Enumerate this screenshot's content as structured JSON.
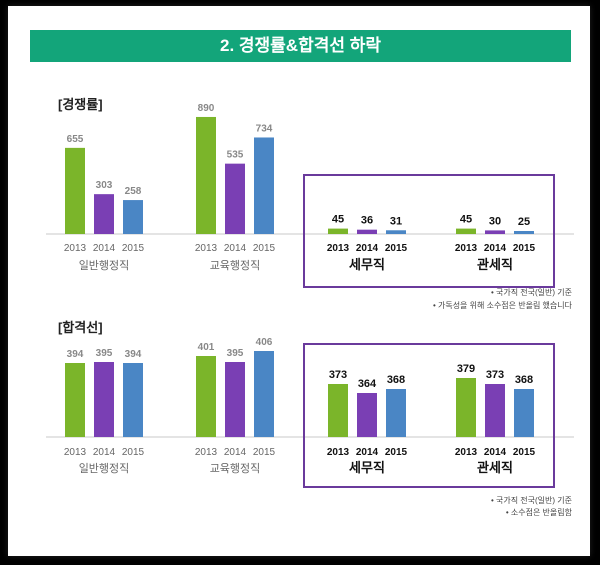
{
  "title": "2. 경쟁률&합격선 하락",
  "colors": {
    "title_bg": "#13a57a",
    "y2013": "#7bb52a",
    "y2014": "#7a3fb4",
    "y2015": "#4a86c5",
    "highlight_border": "#6a3a9c"
  },
  "sections": {
    "competition": {
      "label": "[경쟁률]",
      "notes": [
        "• 국가직 전국(일반) 기준",
        "• 가독성을 위해 소수점은 반올림 했습니다"
      ]
    },
    "cutoff": {
      "label": "[합격선]",
      "notes": [
        "• 국가직 전국(일반) 기준",
        "• 소수점은 반올림함"
      ]
    }
  },
  "chart_data": [
    {
      "type": "bar",
      "title": "경쟁률",
      "categories": [
        "2013",
        "2014",
        "2015"
      ],
      "groups": [
        {
          "name": "일반행정직",
          "values": [
            655,
            303,
            258
          ]
        },
        {
          "name": "교육행정직",
          "values": [
            890,
            535,
            734
          ]
        },
        {
          "name": "세무직",
          "values": [
            45,
            36,
            31
          ]
        },
        {
          "name": "관세직",
          "values": [
            45,
            30,
            25
          ]
        }
      ]
    },
    {
      "type": "bar",
      "title": "합격선",
      "categories": [
        "2013",
        "2014",
        "2015"
      ],
      "groups": [
        {
          "name": "일반행정직",
          "values": [
            394,
            395,
            394
          ]
        },
        {
          "name": "교육행정직",
          "values": [
            401,
            395,
            406
          ]
        },
        {
          "name": "세무직",
          "values": [
            373,
            364,
            368
          ]
        },
        {
          "name": "관세직",
          "values": [
            379,
            373,
            368
          ]
        }
      ]
    }
  ]
}
